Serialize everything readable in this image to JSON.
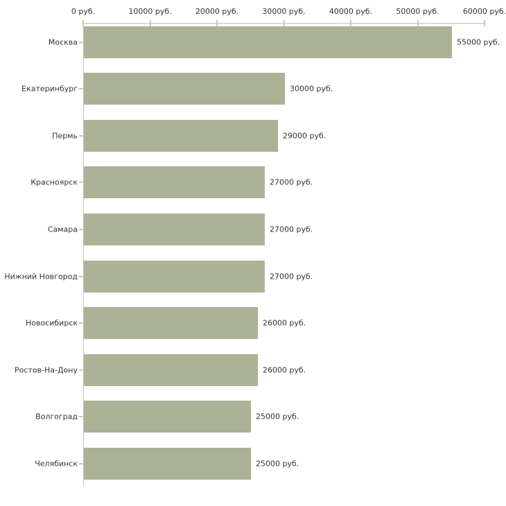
{
  "chart_data": {
    "type": "bar",
    "orientation": "horizontal",
    "title": "",
    "xlabel": "",
    "ylabel": "",
    "unit": "руб.",
    "xlim": [
      0,
      60000
    ],
    "grid": false,
    "legend": null,
    "categories": [
      "Москва",
      "Екатеринбург",
      "Пермь",
      "Красноярск",
      "Самара",
      "Нижний Новгород",
      "Новосибирск",
      "Ростов-На-Дону",
      "Волгоград",
      "Челябинск"
    ],
    "values": [
      55000,
      30000,
      29000,
      27000,
      27000,
      27000,
      26000,
      26000,
      25000,
      25000
    ],
    "value_labels": [
      "55000 руб.",
      "30000 руб.",
      "29000 руб.",
      "27000 руб.",
      "27000 руб.",
      "27000 руб.",
      "26000 руб.",
      "26000 руб.",
      "25000 руб.",
      "25000 руб."
    ],
    "x_ticks": [
      {
        "value": 0,
        "label": "0 руб."
      },
      {
        "value": 10000,
        "label": "10000 руб."
      },
      {
        "value": 20000,
        "label": "20000 руб."
      },
      {
        "value": 30000,
        "label": "30000 руб."
      },
      {
        "value": 40000,
        "label": "40000 руб."
      },
      {
        "value": 50000,
        "label": "50000 руб."
      },
      {
        "value": 60000,
        "label": "60000 руб."
      }
    ]
  },
  "colors": {
    "bar_fill": "#abb295",
    "axis_line": "#c0c0c0",
    "tick_mark": "#c9c99c",
    "text": "#333333",
    "background": "#ffffff"
  }
}
